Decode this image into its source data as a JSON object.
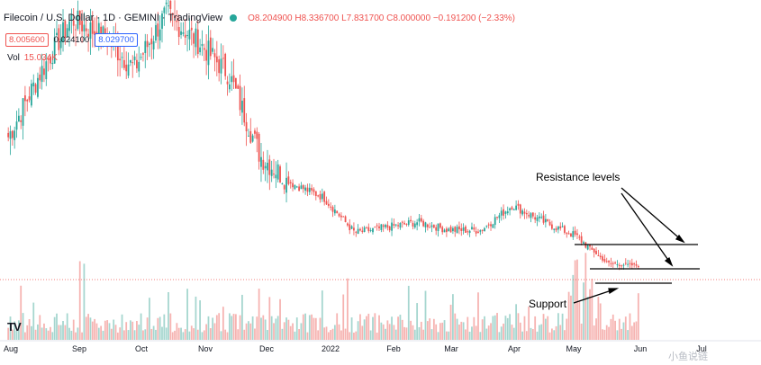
{
  "header": {
    "title": "Filecoin / U.S. Dollar · 1D · GEMINI · TradingView",
    "ohlc": "O8.204900 H8.336700 L7.831700 C8.000000 −0.191200 (−2.33%)",
    "status_color": "#26a69a"
  },
  "quote": {
    "sell": "8.005600",
    "spread": "0.024100",
    "buy": "8.029700"
  },
  "volume_label": {
    "label": "Vol",
    "value": "15.034K"
  },
  "annotations": {
    "resistance": "Resistance levels",
    "support": "Support"
  },
  "watermark": "小鱼说链",
  "logo": "TV",
  "colors": {
    "up": "#26a69a",
    "down": "#ef5350",
    "vol_up": "#a5d6cf",
    "vol_down": "#f6b3b1"
  },
  "chart_data": {
    "type": "candlestick",
    "symbol": "FIL/USD",
    "interval": "1D",
    "exchange": "GEMINI",
    "x_ticks": [
      "Aug",
      "Sep",
      "Oct",
      "Nov",
      "Dec",
      "2022",
      "Feb",
      "Mar",
      "Apr",
      "May",
      "Jun",
      "Jul"
    ],
    "price_path": [
      {
        "x": "Aug",
        "close": 55
      },
      {
        "x": "mid-Aug",
        "close": 78
      },
      {
        "x": "Sep",
        "close": 98
      },
      {
        "x": "mid-Sep",
        "close": 92
      },
      {
        "x": "Oct",
        "close": 80
      },
      {
        "x": "mid-Oct",
        "close": 100
      },
      {
        "x": "Nov",
        "close": 90
      },
      {
        "x": "mid-Nov",
        "close": 78
      },
      {
        "x": "Dec",
        "close": 48
      },
      {
        "x": "mid-Dec",
        "close": 38
      },
      {
        "x": "2022",
        "close": 33
      },
      {
        "x": "mid-Jan",
        "close": 20
      },
      {
        "x": "Feb",
        "close": 22
      },
      {
        "x": "mid-Feb",
        "close": 24
      },
      {
        "x": "Mar",
        "close": 21
      },
      {
        "x": "mid-Mar",
        "close": 21
      },
      {
        "x": "Apr",
        "close": 30
      },
      {
        "x": "mid-Apr",
        "close": 24
      },
      {
        "x": "May",
        "close": 19
      },
      {
        "x": "mid-May",
        "close": 9
      },
      {
        "x": "late-May",
        "close": 8
      }
    ],
    "horizontal_levels": [
      {
        "kind": "resistance",
        "value": 17.5
      },
      {
        "kind": "resistance",
        "value": 12
      },
      {
        "kind": "support",
        "value": 8
      }
    ],
    "last_price": 8.0,
    "volume_spikes": [
      "Sep",
      "May"
    ]
  }
}
